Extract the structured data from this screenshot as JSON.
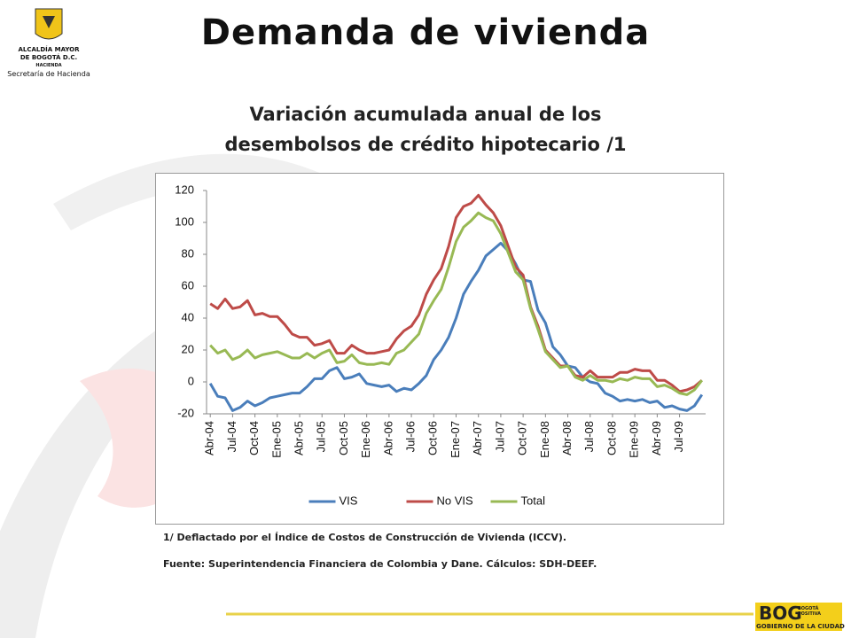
{
  "header": {
    "title": "Demanda de vivienda",
    "logo_line1": "ALCALDÍA MAYOR",
    "logo_line2": "DE BOGOTÁ D.C.",
    "logo_line3": "HACIENDA",
    "logo_line4": "Secretaría de Hacienda"
  },
  "footer": {
    "brand": "BOG",
    "brand_tag": "BOGOTÁ POSITIVA",
    "brand_sub": "GOBIERNO DE LA CIUDAD"
  },
  "notes": [
    "1/ Deflactado por el Índice de Costos de Construcción de Vivienda (ICCV).",
    "Fuente: Superintendencia Financiera de Colombia y Dane. Cálculos: SDH-DEEF."
  ],
  "chart_data": {
    "type": "line",
    "title": "Variación acumulada anual de los desembolsos de crédito hipotecario /1",
    "categories": [
      "Abr-04",
      null,
      null,
      "Jul-04",
      null,
      null,
      "Oct-04",
      null,
      null,
      "Ene-05",
      null,
      null,
      "Abr-05",
      null,
      null,
      "Jul-05",
      null,
      null,
      "Oct-05",
      null,
      null,
      "Ene-06",
      null,
      null,
      "Abr-06",
      null,
      null,
      "Jul-06",
      null,
      null,
      "Oct-06",
      null,
      null,
      "Ene-07",
      null,
      null,
      "Abr-07",
      null,
      null,
      "Jul-07",
      null,
      null,
      "Oct-07",
      null,
      null,
      "Ene-08",
      null,
      null,
      "Abr-08",
      null,
      null,
      "Jul-08",
      null,
      null,
      "Oct-08",
      null,
      null,
      "Ene-09",
      null,
      null,
      "Abr-09",
      null,
      null,
      "Jul-09",
      null,
      null,
      null
    ],
    "series": [
      {
        "name": "VIS",
        "color": "#4a7ebb",
        "values": [
          -1,
          -9,
          -10,
          -18,
          -16,
          -12,
          -15,
          -13,
          -10,
          -9,
          -8,
          -7,
          -7,
          -3,
          2,
          2,
          7,
          9,
          2,
          3,
          5,
          -1,
          -2,
          -3,
          -2,
          -6,
          -4,
          -5,
          -1,
          4,
          14,
          20,
          28,
          40,
          55,
          63,
          70,
          79,
          83,
          87,
          82,
          74,
          64,
          63,
          45,
          37,
          22,
          17,
          10,
          9,
          3,
          0,
          -1,
          -7,
          -9,
          -12,
          -11,
          -12,
          -11,
          -13,
          -12,
          -16,
          -15,
          -17,
          -18,
          -15,
          -8
        ]
      },
      {
        "name": "No VIS",
        "color": "#be4b48",
        "values": [
          49,
          46,
          52,
          46,
          47,
          51,
          42,
          43,
          41,
          41,
          36,
          30,
          28,
          28,
          23,
          24,
          26,
          18,
          18,
          23,
          20,
          18,
          18,
          19,
          20,
          27,
          32,
          35,
          42,
          55,
          64,
          71,
          85,
          103,
          110,
          112,
          117,
          111,
          106,
          98,
          85,
          72,
          67,
          47,
          35,
          20,
          15,
          10,
          10,
          4,
          3,
          7,
          3,
          3,
          3,
          6,
          6,
          8,
          7,
          7,
          1,
          1,
          -2,
          -6,
          -5,
          -3,
          1
        ]
      },
      {
        "name": "Total",
        "color": "#98b954",
        "values": [
          23,
          18,
          20,
          14,
          16,
          20,
          15,
          17,
          18,
          19,
          17,
          15,
          15,
          18,
          15,
          18,
          20,
          12,
          13,
          17,
          12,
          11,
          11,
          12,
          11,
          18,
          20,
          25,
          30,
          43,
          51,
          58,
          72,
          88,
          97,
          101,
          106,
          103,
          101,
          93,
          81,
          69,
          64,
          46,
          33,
          19,
          14,
          9,
          10,
          3,
          1,
          4,
          1,
          1,
          0,
          2,
          1,
          3,
          2,
          2,
          -3,
          -2,
          -4,
          -7,
          -8,
          -5,
          1
        ]
      }
    ],
    "ylim": [
      -20,
      120
    ],
    "yticks": [
      -20,
      0,
      20,
      40,
      60,
      80,
      100,
      120
    ],
    "grid": false,
    "legend": "bottom"
  }
}
